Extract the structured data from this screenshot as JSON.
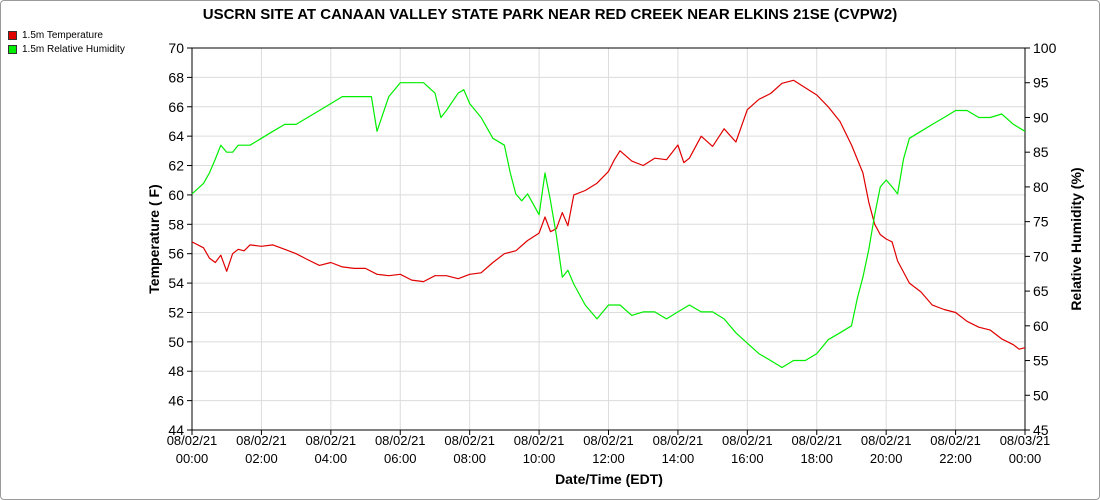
{
  "chart_data": {
    "type": "line",
    "title": "USCRN SITE AT CANAAN VALLEY STATE PARK NEAR RED CREEK NEAR ELKINS 21SE (CVPW2)",
    "xlabel": "Date/Time (EDT)",
    "ylabel_left": "Temperature ( F)",
    "ylabel_right": "Relative Humidity (%)",
    "x_ticks": [
      {
        "date": "08/02/21",
        "time": "00:00"
      },
      {
        "date": "08/02/21",
        "time": "02:00"
      },
      {
        "date": "08/02/21",
        "time": "04:00"
      },
      {
        "date": "08/02/21",
        "time": "06:00"
      },
      {
        "date": "08/02/21",
        "time": "08:00"
      },
      {
        "date": "08/02/21",
        "time": "10:00"
      },
      {
        "date": "08/02/21",
        "time": "12:00"
      },
      {
        "date": "08/02/21",
        "time": "14:00"
      },
      {
        "date": "08/02/21",
        "time": "16:00"
      },
      {
        "date": "08/02/21",
        "time": "18:00"
      },
      {
        "date": "08/02/21",
        "time": "20:00"
      },
      {
        "date": "08/02/21",
        "time": "22:00"
      },
      {
        "date": "08/03/21",
        "time": "00:00"
      }
    ],
    "x_range_hours": [
      0,
      24
    ],
    "ylim_left": [
      44,
      70
    ],
    "yticks_left": [
      44,
      46,
      48,
      50,
      52,
      54,
      56,
      58,
      60,
      62,
      64,
      66,
      68,
      70
    ],
    "ylim_right": [
      45,
      100
    ],
    "yticks_right": [
      45,
      50,
      55,
      60,
      65,
      70,
      75,
      80,
      85,
      90,
      95,
      100
    ],
    "grid": true,
    "legend_position": "top-left",
    "series": [
      {
        "name": "1.5m Temperature",
        "color": "#e00000",
        "axis": "left",
        "hours": [
          0,
          0.33,
          0.5,
          0.67,
          0.83,
          1.0,
          1.17,
          1.33,
          1.5,
          1.67,
          2.0,
          2.33,
          2.67,
          3.0,
          3.33,
          3.67,
          4.0,
          4.33,
          4.67,
          5.0,
          5.33,
          5.67,
          6.0,
          6.33,
          6.67,
          7.0,
          7.33,
          7.67,
          8.0,
          8.33,
          8.67,
          9.0,
          9.33,
          9.67,
          10.0,
          10.17,
          10.33,
          10.5,
          10.67,
          10.83,
          11.0,
          11.33,
          11.67,
          12.0,
          12.17,
          12.33,
          12.67,
          13.0,
          13.33,
          13.67,
          14.0,
          14.17,
          14.33,
          14.67,
          15.0,
          15.33,
          15.67,
          16.0,
          16.33,
          16.67,
          17.0,
          17.33,
          17.67,
          18.0,
          18.33,
          18.67,
          19.0,
          19.33,
          19.5,
          19.67,
          19.83,
          20.0,
          20.17,
          20.33,
          20.67,
          21.0,
          21.33,
          21.67,
          22.0,
          22.33,
          22.67,
          23.0,
          23.33,
          23.5,
          23.67,
          23.83,
          24.0
        ],
        "values": [
          56.8,
          56.4,
          55.7,
          55.4,
          55.9,
          54.8,
          56.0,
          56.3,
          56.2,
          56.6,
          56.5,
          56.6,
          56.3,
          56.0,
          55.6,
          55.2,
          55.4,
          55.1,
          55.0,
          55.0,
          54.6,
          54.5,
          54.6,
          54.2,
          54.1,
          54.5,
          54.5,
          54.3,
          54.6,
          54.7,
          55.4,
          56.0,
          56.2,
          56.9,
          57.4,
          58.5,
          57.5,
          57.7,
          58.8,
          57.9,
          60.0,
          60.3,
          60.8,
          61.6,
          62.4,
          63.0,
          62.3,
          62.0,
          62.5,
          62.4,
          63.4,
          62.2,
          62.5,
          64.0,
          63.3,
          64.5,
          63.6,
          65.8,
          66.5,
          66.9,
          67.6,
          67.8,
          67.3,
          66.8,
          66.0,
          65.0,
          63.4,
          61.5,
          59.5,
          58.0,
          57.3,
          57.0,
          56.8,
          55.5,
          54.0,
          53.4,
          52.5,
          52.2,
          52.0,
          51.4,
          51.0,
          50.8,
          50.2,
          50.0,
          49.8,
          49.5,
          49.6
        ]
      },
      {
        "name": "1.5m Relative Humidity",
        "color": "#00ee00",
        "axis": "right",
        "hours": [
          0,
          0.33,
          0.5,
          0.67,
          0.83,
          1.0,
          1.17,
          1.33,
          1.67,
          2.0,
          2.33,
          2.67,
          3.0,
          3.33,
          3.67,
          4.0,
          4.33,
          4.67,
          5.0,
          5.17,
          5.33,
          5.67,
          6.0,
          6.33,
          6.67,
          7.0,
          7.17,
          7.33,
          7.67,
          7.83,
          8.0,
          8.33,
          8.67,
          9.0,
          9.17,
          9.33,
          9.5,
          9.67,
          10.0,
          10.17,
          10.33,
          10.5,
          10.67,
          10.83,
          11.0,
          11.33,
          11.67,
          12.0,
          12.33,
          12.67,
          13.0,
          13.33,
          13.67,
          14.0,
          14.33,
          14.67,
          15.0,
          15.33,
          15.67,
          16.0,
          16.33,
          16.67,
          17.0,
          17.33,
          17.67,
          18.0,
          18.33,
          18.67,
          19.0,
          19.17,
          19.33,
          19.5,
          19.67,
          19.83,
          20.0,
          20.17,
          20.33,
          20.5,
          20.67,
          21.0,
          21.33,
          21.67,
          22.0,
          22.33,
          22.67,
          23.0,
          23.33,
          23.67,
          24.0
        ],
        "values": [
          79,
          80.5,
          82,
          84,
          86,
          85,
          85,
          86,
          86,
          87,
          88,
          89,
          89,
          90,
          91,
          92,
          93,
          93,
          93,
          93,
          88,
          93,
          95,
          95,
          95,
          93.5,
          90,
          91,
          93.5,
          94,
          92,
          90,
          87,
          86,
          82,
          79,
          78,
          79,
          76,
          82,
          78,
          73,
          67,
          68,
          66,
          63,
          61,
          63,
          63,
          61.5,
          62,
          62,
          61,
          62,
          63,
          62,
          62,
          61,
          59,
          57.5,
          56,
          55,
          54,
          55,
          55,
          56,
          58,
          59,
          60,
          64,
          67,
          71,
          76,
          80,
          81,
          80,
          79,
          84,
          87,
          88,
          89,
          90,
          91,
          91,
          90,
          90,
          90.5,
          89,
          88
        ]
      }
    ]
  },
  "legend": {
    "items": [
      {
        "label": "1.5m Temperature",
        "color": "#e00000"
      },
      {
        "label": "1.5m Relative Humidity",
        "color": "#00ee00"
      }
    ]
  }
}
